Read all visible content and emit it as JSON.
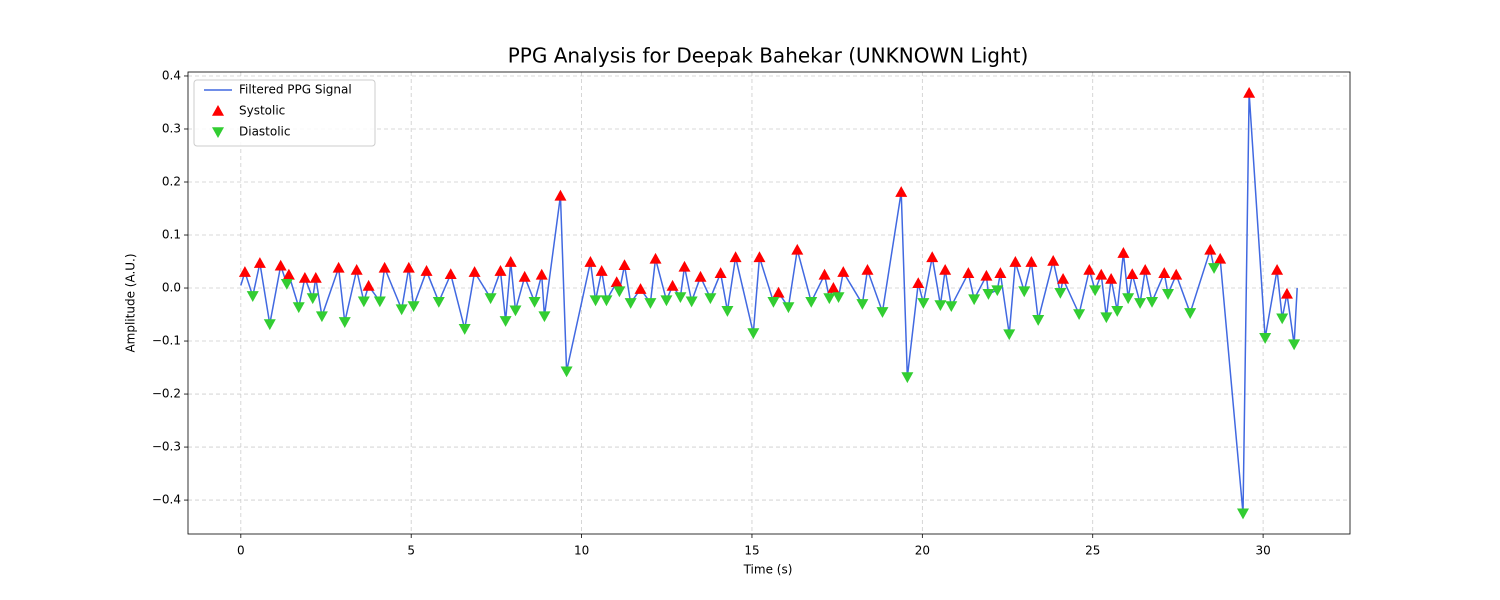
{
  "chart_data": {
    "type": "line",
    "title": "PPG Analysis for Deepak Bahekar (UNKNOWN Light)",
    "xlabel": "Time (s)",
    "ylabel": "Amplitude (A.U.)",
    "xlim": [
      -1.55,
      32.55
    ],
    "ylim": [
      -0.464,
      0.4075
    ],
    "xticks": [
      0,
      5,
      10,
      15,
      20,
      25,
      30
    ],
    "yticks": [
      {
        "value": -0.4,
        "label": "−0.4"
      },
      {
        "value": -0.3,
        "label": "−0.3"
      },
      {
        "value": -0.2,
        "label": "−0.2"
      },
      {
        "value": -0.1,
        "label": "−0.1"
      },
      {
        "value": 0,
        "label": "0.0"
      },
      0.1,
      0.2,
      0.3,
      0.4
    ],
    "grid": true,
    "legend": "upper left",
    "series": [
      {
        "name": "Filtered PPG Signal",
        "type": "line",
        "color": "#4169e1",
        "x": [
          0,
          0.12,
          0.35,
          0.56,
          0.85,
          1.17,
          1.35,
          1.41,
          1.7,
          1.88,
          2.11,
          2.2,
          2.38,
          2.87,
          3.05,
          3.4,
          3.61,
          3.75,
          4.08,
          4.22,
          4.72,
          4.93,
          5.07,
          5.45,
          5.81,
          6.16,
          6.57,
          6.86,
          7.33,
          7.62,
          7.77,
          7.92,
          8.06,
          8.33,
          8.62,
          8.83,
          8.91,
          9.38,
          9.56,
          10.26,
          10.41,
          10.59,
          10.73,
          11.03,
          11.11,
          11.26,
          11.44,
          11.73,
          12.02,
          12.17,
          12.49,
          12.67,
          12.9,
          13.02,
          13.23,
          13.49,
          13.78,
          14.08,
          14.28,
          14.52,
          15.04,
          15.22,
          15.63,
          15.78,
          16.07,
          16.33,
          16.74,
          17.13,
          17.27,
          17.39,
          17.54,
          17.68,
          18.24,
          18.39,
          18.83,
          19.38,
          19.56,
          19.88,
          20.03,
          20.29,
          20.53,
          20.67,
          20.85,
          21.35,
          21.52,
          21.88,
          21.94,
          22.2,
          22.29,
          22.55,
          22.73,
          22.99,
          23.2,
          23.4,
          23.84,
          24.05,
          24.13,
          24.6,
          24.9,
          25.07,
          25.25,
          25.4,
          25.54,
          25.72,
          25.9,
          26.04,
          26.16,
          26.39,
          26.54,
          26.74,
          27.1,
          27.21,
          27.45,
          27.86,
          28.45,
          28.56,
          28.74,
          29.41,
          29.59,
          30.06,
          30.41,
          30.56,
          30.7,
          30.91,
          31
        ],
        "values": [
          0.005,
          0.03,
          -0.015,
          0.047,
          -0.068,
          0.042,
          0.008,
          0.025,
          -0.036,
          0.019,
          -0.019,
          0.019,
          -0.053,
          0.038,
          -0.064,
          0.034,
          -0.025,
          0.004,
          -0.025,
          0.038,
          -0.04,
          0.038,
          -0.034,
          0.032,
          -0.026,
          0.026,
          -0.077,
          0.03,
          -0.019,
          0.032,
          -0.062,
          0.049,
          -0.042,
          0.021,
          -0.026,
          0.025,
          -0.053,
          0.174,
          -0.157,
          0.049,
          -0.023,
          0.032,
          -0.023,
          0.011,
          -0.006,
          0.043,
          -0.028,
          -0.002,
          -0.028,
          0.055,
          -0.023,
          0.004,
          -0.017,
          0.04,
          -0.025,
          0.021,
          -0.019,
          0.028,
          -0.043,
          0.058,
          -0.085,
          0.058,
          -0.026,
          -0.009,
          -0.036,
          0.072,
          -0.026,
          0.025,
          -0.019,
          0,
          -0.017,
          0.03,
          -0.03,
          0.034,
          -0.045,
          0.181,
          -0.168,
          0.009,
          -0.028,
          0.058,
          -0.032,
          0.034,
          -0.034,
          0.028,
          -0.021,
          0.023,
          -0.011,
          -0.004,
          0.028,
          -0.087,
          0.049,
          -0.006,
          0.049,
          -0.06,
          0.051,
          -0.009,
          0.017,
          -0.049,
          0.034,
          -0.004,
          0.025,
          -0.055,
          0.017,
          -0.043,
          0.066,
          -0.019,
          0.026,
          -0.028,
          0.034,
          -0.026,
          0.028,
          -0.011,
          0.025,
          -0.047,
          0.072,
          0.038,
          0.055,
          -0.425,
          0.368,
          -0.094,
          0.034,
          -0.057,
          -0.011,
          -0.106,
          0
        ]
      },
      {
        "name": "Systolic",
        "type": "scatter",
        "marker": "up",
        "color": "#ff0000",
        "x": [
          0.12,
          0.56,
          1.17,
          1.41,
          1.88,
          2.2,
          2.87,
          3.4,
          3.75,
          4.22,
          4.93,
          5.45,
          6.16,
          6.86,
          7.62,
          7.92,
          8.33,
          8.83,
          9.38,
          10.26,
          10.59,
          11.03,
          11.26,
          11.73,
          12.17,
          12.67,
          13.02,
          13.49,
          14.08,
          14.52,
          15.22,
          15.78,
          16.33,
          17.13,
          17.39,
          17.68,
          18.39,
          19.38,
          19.88,
          20.29,
          20.67,
          21.35,
          21.88,
          22.29,
          22.73,
          23.2,
          23.84,
          24.13,
          24.9,
          25.25,
          25.54,
          25.9,
          26.16,
          26.54,
          27.1,
          27.45,
          28.45,
          28.74,
          29.59,
          30.41,
          30.7
        ],
        "values": [
          0.03,
          0.047,
          0.042,
          0.025,
          0.019,
          0.019,
          0.038,
          0.034,
          0.004,
          0.038,
          0.038,
          0.032,
          0.026,
          0.03,
          0.032,
          0.049,
          0.021,
          0.025,
          0.174,
          0.049,
          0.032,
          0.011,
          0.043,
          -0.002,
          0.055,
          0.004,
          0.04,
          0.021,
          0.028,
          0.058,
          0.058,
          -0.009,
          0.072,
          0.025,
          0,
          0.03,
          0.034,
          0.181,
          0.009,
          0.058,
          0.034,
          0.028,
          0.023,
          0.028,
          0.049,
          0.049,
          0.051,
          0.017,
          0.034,
          0.025,
          0.017,
          0.066,
          0.026,
          0.034,
          0.028,
          0.025,
          0.072,
          0.055,
          0.368,
          0.034,
          -0.011
        ]
      },
      {
        "name": "Diastolic",
        "type": "scatter",
        "marker": "down",
        "color": "#32cd32",
        "x": [
          0.35,
          0.85,
          1.35,
          1.7,
          2.11,
          2.38,
          3.05,
          3.61,
          4.08,
          4.72,
          5.07,
          5.81,
          6.57,
          7.33,
          7.77,
          8.06,
          8.62,
          8.91,
          9.56,
          10.41,
          10.73,
          11.11,
          11.44,
          12.02,
          12.49,
          12.9,
          13.23,
          13.78,
          14.28,
          15.04,
          15.63,
          16.07,
          16.74,
          17.27,
          17.54,
          18.24,
          18.83,
          19.56,
          20.03,
          20.53,
          20.85,
          21.52,
          21.94,
          22.2,
          22.55,
          22.99,
          23.4,
          24.05,
          24.6,
          25.07,
          25.4,
          25.72,
          26.04,
          26.39,
          26.74,
          27.21,
          27.86,
          28.56,
          29.41,
          30.06,
          30.56,
          30.91
        ],
        "values": [
          -0.015,
          -0.068,
          0.008,
          -0.036,
          -0.019,
          -0.053,
          -0.064,
          -0.025,
          -0.025,
          -0.04,
          -0.034,
          -0.026,
          -0.077,
          -0.019,
          -0.062,
          -0.042,
          -0.026,
          -0.053,
          -0.157,
          -0.023,
          -0.023,
          -0.006,
          -0.028,
          -0.028,
          -0.023,
          -0.017,
          -0.025,
          -0.019,
          -0.043,
          -0.085,
          -0.026,
          -0.036,
          -0.026,
          -0.019,
          -0.017,
          -0.03,
          -0.045,
          -0.168,
          -0.028,
          -0.032,
          -0.034,
          -0.021,
          -0.011,
          -0.004,
          -0.087,
          -0.006,
          -0.06,
          -0.009,
          -0.049,
          -0.004,
          -0.055,
          -0.043,
          -0.019,
          -0.028,
          -0.026,
          -0.011,
          -0.047,
          0.038,
          -0.425,
          -0.094,
          -0.057,
          -0.106
        ]
      }
    ]
  }
}
